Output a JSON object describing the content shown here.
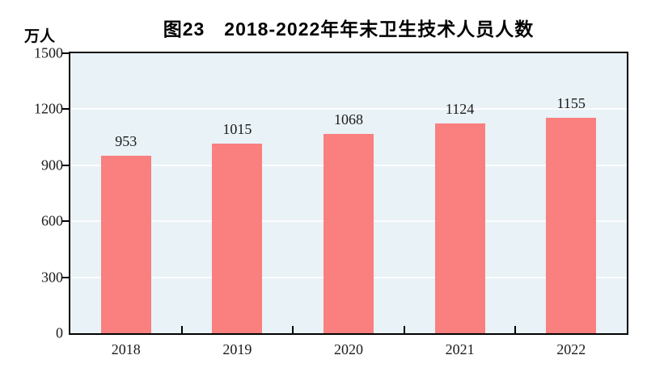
{
  "chart_data": {
    "type": "bar",
    "title": "图23　2018-2022年年末卫生技术人员人数",
    "unit_label": "万人",
    "categories": [
      "2018",
      "2019",
      "2020",
      "2021",
      "2022"
    ],
    "values": [
      953,
      1015,
      1068,
      1124,
      1155
    ],
    "ylim": [
      0,
      1500
    ],
    "yticks": [
      0,
      300,
      600,
      900,
      1200,
      1500
    ],
    "grid": "horizontal",
    "legend": "none",
    "bar_color": "#fa7f7f",
    "plot_background": "#e9f2f6",
    "gridline_color": "#fbfdfe",
    "axis_color": "#000000",
    "label_color": "#1a1a1a"
  }
}
